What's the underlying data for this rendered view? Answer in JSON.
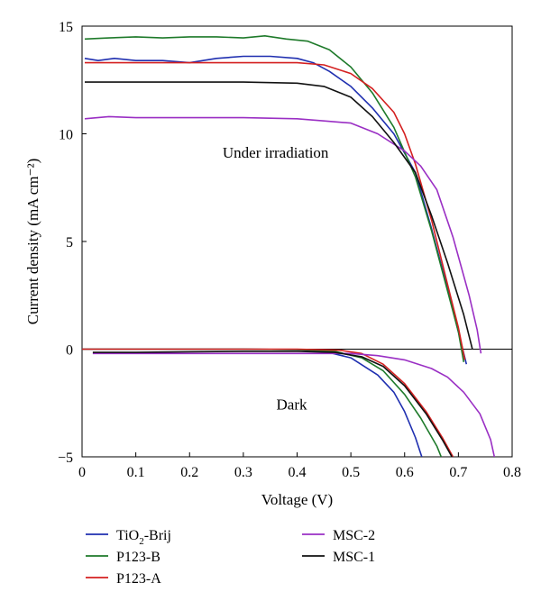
{
  "chart_data": {
    "type": "line",
    "xlabel": "Voltage (V)",
    "ylabel": "Current density (mA cm⁻²)",
    "xlim": [
      0,
      0.8
    ],
    "ylim": [
      -5,
      15
    ],
    "x_ticks": [
      "0",
      "0.1",
      "0.2",
      "0.3",
      "0.4",
      "0.5",
      "0.6",
      "0.7",
      "0.8"
    ],
    "y_ticks": [
      "15",
      "10",
      "5",
      "0",
      "−5"
    ],
    "grid": false,
    "legend_position": "bottom",
    "annotations": [
      {
        "text": "Under irradiation",
        "x": 0.36,
        "y": 8.9
      },
      {
        "text": "Dark",
        "x": 0.39,
        "y": -2.8
      }
    ],
    "series": [
      {
        "name": "TiO2-Brij",
        "name_main": "TiO",
        "name_sub": "2",
        "name_rest": "-Brij",
        "color": "#1f2fb0",
        "irradiation": [
          [
            0.005,
            13.5
          ],
          [
            0.03,
            13.4
          ],
          [
            0.06,
            13.5
          ],
          [
            0.1,
            13.4
          ],
          [
            0.15,
            13.4
          ],
          [
            0.2,
            13.3
          ],
          [
            0.25,
            13.5
          ],
          [
            0.3,
            13.6
          ],
          [
            0.35,
            13.6
          ],
          [
            0.4,
            13.5
          ],
          [
            0.43,
            13.3
          ],
          [
            0.46,
            12.9
          ],
          [
            0.5,
            12.2
          ],
          [
            0.54,
            11.2
          ],
          [
            0.58,
            10.0
          ],
          [
            0.62,
            8.2
          ],
          [
            0.65,
            5.6
          ],
          [
            0.68,
            2.8
          ],
          [
            0.7,
            0.8
          ],
          [
            0.715,
            -0.7
          ]
        ],
        "dark": [
          [
            0.0,
            0.0
          ],
          [
            0.1,
            0.0
          ],
          [
            0.2,
            0.0
          ],
          [
            0.3,
            0.0
          ],
          [
            0.4,
            -0.02
          ],
          [
            0.45,
            -0.1
          ],
          [
            0.5,
            -0.4
          ],
          [
            0.55,
            -1.2
          ],
          [
            0.58,
            -2.0
          ],
          [
            0.6,
            -2.9
          ],
          [
            0.62,
            -4.1
          ],
          [
            0.632,
            -5.0
          ]
        ]
      },
      {
        "name": "P123-B",
        "name_main": "P123-B",
        "name_sub": "",
        "name_rest": "",
        "color": "#1e7a2a",
        "irradiation": [
          [
            0.005,
            14.4
          ],
          [
            0.05,
            14.45
          ],
          [
            0.1,
            14.5
          ],
          [
            0.15,
            14.45
          ],
          [
            0.2,
            14.5
          ],
          [
            0.25,
            14.5
          ],
          [
            0.3,
            14.45
          ],
          [
            0.34,
            14.55
          ],
          [
            0.38,
            14.4
          ],
          [
            0.42,
            14.3
          ],
          [
            0.46,
            13.9
          ],
          [
            0.5,
            13.1
          ],
          [
            0.54,
            11.9
          ],
          [
            0.58,
            10.3
          ],
          [
            0.62,
            8.0
          ],
          [
            0.65,
            5.5
          ],
          [
            0.68,
            2.7
          ],
          [
            0.7,
            0.8
          ],
          [
            0.71,
            -0.6
          ]
        ],
        "dark": [
          [
            0.0,
            0.0
          ],
          [
            0.1,
            0.0
          ],
          [
            0.2,
            0.0
          ],
          [
            0.3,
            0.0
          ],
          [
            0.4,
            -0.02
          ],
          [
            0.47,
            -0.1
          ],
          [
            0.52,
            -0.4
          ],
          [
            0.56,
            -1.0
          ],
          [
            0.6,
            -2.1
          ],
          [
            0.63,
            -3.2
          ],
          [
            0.66,
            -4.5
          ],
          [
            0.668,
            -5.0
          ]
        ]
      },
      {
        "name": "P123-A",
        "name_main": "P123-A",
        "name_sub": "",
        "name_rest": "",
        "color": "#d42020",
        "irradiation": [
          [
            0.005,
            13.3
          ],
          [
            0.05,
            13.3
          ],
          [
            0.1,
            13.3
          ],
          [
            0.15,
            13.3
          ],
          [
            0.2,
            13.3
          ],
          [
            0.25,
            13.3
          ],
          [
            0.3,
            13.3
          ],
          [
            0.35,
            13.3
          ],
          [
            0.4,
            13.3
          ],
          [
            0.45,
            13.2
          ],
          [
            0.5,
            12.8
          ],
          [
            0.54,
            12.1
          ],
          [
            0.58,
            11.0
          ],
          [
            0.6,
            10.0
          ],
          [
            0.62,
            8.6
          ],
          [
            0.65,
            6.0
          ],
          [
            0.68,
            3.0
          ],
          [
            0.7,
            1.0
          ],
          [
            0.712,
            -0.5
          ]
        ],
        "dark": [
          [
            0.0,
            0.0
          ],
          [
            0.1,
            0.0
          ],
          [
            0.2,
            0.0
          ],
          [
            0.3,
            0.0
          ],
          [
            0.4,
            0.0
          ],
          [
            0.48,
            -0.05
          ],
          [
            0.52,
            -0.2
          ],
          [
            0.56,
            -0.7
          ],
          [
            0.6,
            -1.6
          ],
          [
            0.64,
            -2.9
          ],
          [
            0.67,
            -4.1
          ],
          [
            0.69,
            -5.0
          ]
        ]
      },
      {
        "name": "MSC-2",
        "name_main": "MSC-2",
        "name_sub": "",
        "name_rest": "",
        "color": "#9a2fc4",
        "irradiation": [
          [
            0.005,
            10.7
          ],
          [
            0.05,
            10.8
          ],
          [
            0.1,
            10.75
          ],
          [
            0.2,
            10.75
          ],
          [
            0.3,
            10.75
          ],
          [
            0.4,
            10.7
          ],
          [
            0.45,
            10.6
          ],
          [
            0.5,
            10.5
          ],
          [
            0.55,
            10.0
          ],
          [
            0.6,
            9.2
          ],
          [
            0.63,
            8.5
          ],
          [
            0.66,
            7.4
          ],
          [
            0.69,
            5.2
          ],
          [
            0.72,
            2.5
          ],
          [
            0.735,
            0.9
          ],
          [
            0.742,
            -0.2
          ]
        ],
        "dark": [
          [
            0.02,
            -0.2
          ],
          [
            0.1,
            -0.2
          ],
          [
            0.2,
            -0.2
          ],
          [
            0.3,
            -0.2
          ],
          [
            0.4,
            -0.2
          ],
          [
            0.5,
            -0.2
          ],
          [
            0.55,
            -0.3
          ],
          [
            0.6,
            -0.5
          ],
          [
            0.65,
            -0.9
          ],
          [
            0.68,
            -1.3
          ],
          [
            0.71,
            -2.0
          ],
          [
            0.74,
            -3.0
          ],
          [
            0.76,
            -4.2
          ],
          [
            0.767,
            -5.0
          ]
        ]
      },
      {
        "name": "MSC-1",
        "name_main": "MSC-1",
        "name_sub": "",
        "name_rest": "",
        "color": "#111111",
        "irradiation": [
          [
            0.005,
            12.4
          ],
          [
            0.05,
            12.4
          ],
          [
            0.1,
            12.4
          ],
          [
            0.2,
            12.4
          ],
          [
            0.3,
            12.4
          ],
          [
            0.4,
            12.35
          ],
          [
            0.45,
            12.2
          ],
          [
            0.5,
            11.7
          ],
          [
            0.54,
            10.8
          ],
          [
            0.58,
            9.6
          ],
          [
            0.62,
            8.2
          ],
          [
            0.65,
            6.2
          ],
          [
            0.68,
            4.0
          ],
          [
            0.71,
            1.6
          ],
          [
            0.726,
            0.0
          ]
        ],
        "dark": [
          [
            0.02,
            -0.15
          ],
          [
            0.1,
            -0.15
          ],
          [
            0.2,
            -0.12
          ],
          [
            0.3,
            -0.1
          ],
          [
            0.4,
            -0.1
          ],
          [
            0.47,
            -0.15
          ],
          [
            0.52,
            -0.35
          ],
          [
            0.56,
            -0.8
          ],
          [
            0.6,
            -1.7
          ],
          [
            0.64,
            -3.0
          ],
          [
            0.67,
            -4.2
          ],
          [
            0.688,
            -5.0
          ]
        ]
      }
    ]
  }
}
